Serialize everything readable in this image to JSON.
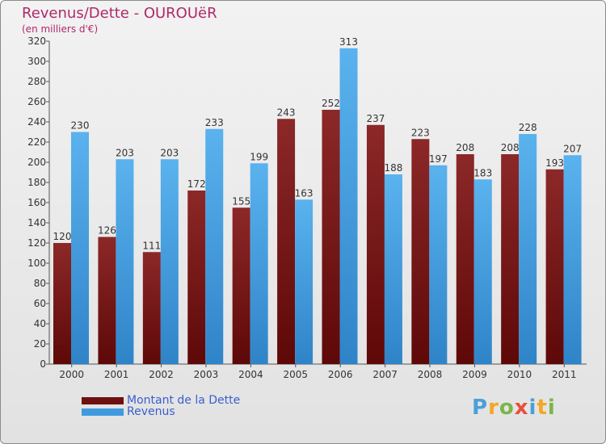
{
  "chart_data": {
    "type": "bar",
    "title": "Revenus/Dette - OUROUëR",
    "subtitle": "(en milliers d'€)",
    "categories": [
      "2000",
      "2001",
      "2002",
      "2003",
      "2004",
      "2005",
      "2006",
      "2007",
      "2008",
      "2009",
      "2010",
      "2011"
    ],
    "series": [
      {
        "name": "Montant de la Dette",
        "color": "#7a1a1a",
        "values": [
          120,
          126,
          111,
          172,
          155,
          243,
          252,
          237,
          223,
          208,
          208,
          193
        ]
      },
      {
        "name": "Revenus",
        "color": "#4ea6e6",
        "values": [
          230,
          203,
          203,
          233,
          199,
          163,
          313,
          188,
          197,
          183,
          228,
          207
        ]
      }
    ],
    "yticks": [
      0,
      20,
      40,
      60,
      80,
      100,
      120,
      140,
      160,
      180,
      200,
      220,
      240,
      260,
      280,
      300,
      320
    ],
    "ylim": [
      0,
      320
    ],
    "grid": false,
    "legend_position": "bottom-left"
  },
  "brand": {
    "letters": [
      "P",
      "r",
      "o",
      "x",
      "i",
      "t",
      "i"
    ]
  }
}
